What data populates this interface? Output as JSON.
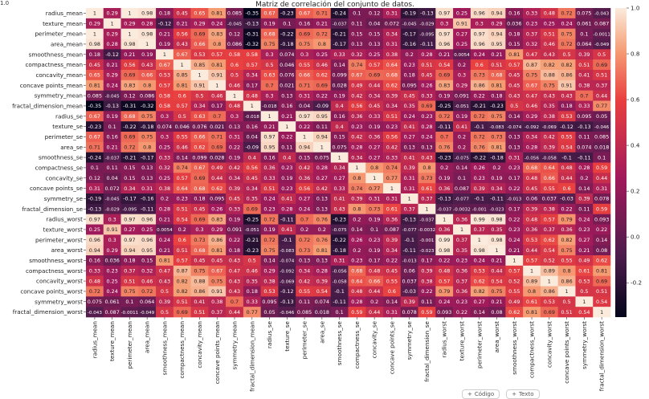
{
  "chart_data": {
    "type": "heatmap",
    "title": "Matriz de correlación del conjunto de datos.",
    "labels": [
      "radius_mean",
      "texture_mean",
      "perimeter_mean",
      "area_mean",
      "smoothness_mean",
      "compactness_mean",
      "concavity_mean",
      "concave points_mean",
      "symmetry_mean",
      "fractal_dimension_mean",
      "radius_se",
      "texture_se",
      "perimeter_se",
      "area_se",
      "smoothness_se",
      "compactness_se",
      "concavity_se",
      "concave points_se",
      "symmetry_se",
      "fractal_dimension_se",
      "radius_worst",
      "texture_worst",
      "perimeter_worst",
      "area_worst",
      "smoothness_worst",
      "compactness_worst",
      "concavity_worst",
      "concave points_worst",
      "symmetry_worst",
      "fractal_dimension_worst"
    ],
    "matrix": [
      [
        "1",
        "0.29",
        "1",
        "0.98",
        "0.18",
        "0.45",
        "0.65",
        "0.81",
        "0.085",
        "-0.35",
        "0.67",
        "-0.23",
        "0.67",
        "0.71",
        "-0.24",
        "0.1",
        "0.12",
        "0.31",
        "-0.19",
        "-0.13",
        "0.97",
        "0.25",
        "0.96",
        "0.94",
        "0.16",
        "0.33",
        "0.48",
        "0.72",
        "0.075",
        "-0.043"
      ],
      [
        "0.29",
        "1",
        "0.29",
        "0.28",
        "-0.12",
        "0.21",
        "0.29",
        "0.24",
        "-0.045",
        "-0.13",
        "0.19",
        "0.1",
        "0.16",
        "0.21",
        "-0.037",
        "0.11",
        "0.04",
        "0.072",
        "-0.045",
        "-0.029",
        "0.3",
        "0.91",
        "0.3",
        "0.29",
        "0.036",
        "0.23",
        "0.25",
        "0.24",
        "0.061",
        "0.087"
      ],
      [
        "1",
        "0.29",
        "1",
        "0.98",
        "0.21",
        "0.56",
        "0.69",
        "0.83",
        "0.12",
        "-0.31",
        "0.68",
        "-0.22",
        "0.69",
        "0.72",
        "-0.21",
        "0.15",
        "0.15",
        "0.34",
        "-0.17",
        "-0.095",
        "0.97",
        "0.27",
        "0.97",
        "0.94",
        "0.18",
        "0.37",
        "0.51",
        "0.75",
        "0.1",
        "-0.0011"
      ],
      [
        "0.98",
        "0.28",
        "0.98",
        "1",
        "0.19",
        "0.43",
        "0.66",
        "0.8",
        "0.086",
        "-0.32",
        "0.75",
        "-0.18",
        "0.75",
        "0.8",
        "-0.17",
        "0.13",
        "0.13",
        "0.31",
        "-0.16",
        "-0.11",
        "0.96",
        "0.25",
        "0.96",
        "0.95",
        "0.15",
        "0.32",
        "0.46",
        "0.72",
        "0.064",
        "-0.049"
      ],
      [
        "0.18",
        "-0.12",
        "0.21",
        "0.19",
        "1",
        "0.67",
        "0.53",
        "0.57",
        "0.58",
        "0.58",
        "0.3",
        "0.074",
        "0.3",
        "0.25",
        "0.33",
        "0.32",
        "0.25",
        "0.38",
        "0.2",
        "0.28",
        "0.21",
        "0.0054",
        "0.24",
        "0.21",
        "0.81",
        "0.47",
        "0.43",
        "0.5",
        "0.39",
        "0.5"
      ],
      [
        "0.45",
        "0.21",
        "0.56",
        "0.43",
        "0.67",
        "1",
        "0.85",
        "0.81",
        "0.6",
        "0.57",
        "0.5",
        "0.046",
        "0.55",
        "0.46",
        "0.14",
        "0.74",
        "0.57",
        "0.64",
        "0.23",
        "0.51",
        "0.54",
        "0.2",
        "0.6",
        "0.51",
        "0.57",
        "0.87",
        "0.82",
        "0.82",
        "0.51",
        "0.69"
      ],
      [
        "0.65",
        "0.29",
        "0.69",
        "0.66",
        "0.53",
        "0.85",
        "1",
        "0.91",
        "0.5",
        "0.34",
        "0.63",
        "0.076",
        "0.66",
        "0.62",
        "0.099",
        "0.67",
        "0.69",
        "0.68",
        "0.18",
        "0.45",
        "0.69",
        "0.3",
        "0.73",
        "0.68",
        "0.45",
        "0.75",
        "0.88",
        "0.86",
        "0.41",
        "0.51"
      ],
      [
        "0.81",
        "0.24",
        "0.83",
        "0.8",
        "0.57",
        "0.81",
        "0.91",
        "1",
        "0.46",
        "0.17",
        "0.7",
        "0.021",
        "0.71",
        "0.69",
        "0.028",
        "0.49",
        "0.44",
        "0.62",
        "0.095",
        "0.26",
        "0.83",
        "0.29",
        "0.86",
        "0.81",
        "0.45",
        "0.67",
        "0.75",
        "0.91",
        "0.38",
        "0.37"
      ],
      [
        "0.085",
        "-0.045",
        "0.12",
        "0.086",
        "0.58",
        "0.6",
        "0.5",
        "0.46",
        "1",
        "0.48",
        "0.3",
        "0.13",
        "0.31",
        "0.22",
        "0.19",
        "0.42",
        "0.34",
        "0.39",
        "0.45",
        "0.33",
        "0.19",
        "0.091",
        "0.22",
        "0.18",
        "0.43",
        "0.47",
        "0.43",
        "0.43",
        "0.7",
        "0.44"
      ],
      [
        "-0.35",
        "-0.13",
        "-0.31",
        "-0.32",
        "0.58",
        "0.57",
        "0.34",
        "0.17",
        "0.48",
        "1",
        "-0.018",
        "0.16",
        "0.04",
        "-0.09",
        "0.4",
        "0.56",
        "0.45",
        "0.34",
        "0.35",
        "0.69",
        "-0.25",
        "-0.051",
        "-0.21",
        "-0.23",
        "0.5",
        "0.46",
        "0.35",
        "0.18",
        "0.33",
        "0.77"
      ],
      [
        "0.67",
        "0.19",
        "0.68",
        "0.75",
        "0.3",
        "0.5",
        "0.63",
        "0.7",
        "0.3",
        "-0.018",
        "1",
        "0.21",
        "0.97",
        "0.95",
        "0.16",
        "0.36",
        "0.33",
        "0.51",
        "0.24",
        "0.23",
        "0.72",
        "0.19",
        "0.72",
        "0.75",
        "0.14",
        "0.29",
        "0.38",
        "0.53",
        "0.095",
        "0.05"
      ],
      [
        "-0.23",
        "0.1",
        "-0.22",
        "-0.18",
        "0.074",
        "0.046",
        "0.076",
        "0.021",
        "0.13",
        "0.16",
        "0.21",
        "1",
        "0.22",
        "0.11",
        "0.4",
        "0.23",
        "0.19",
        "0.23",
        "0.41",
        "0.28",
        "-0.11",
        "0.41",
        "-0.1",
        "-0.083",
        "-0.074",
        "-0.092",
        "-0.069",
        "-0.12",
        "-0.13",
        "-0.046"
      ],
      [
        "0.67",
        "0.16",
        "0.69",
        "0.75",
        "0.3",
        "0.55",
        "0.66",
        "0.71",
        "0.31",
        "0.04",
        "0.97",
        "0.22",
        "1",
        "0.94",
        "0.15",
        "0.42",
        "0.36",
        "0.56",
        "0.27",
        "0.24",
        "0.7",
        "0.2",
        "0.72",
        "0.73",
        "0.13",
        "0.34",
        "0.42",
        "0.55",
        "0.11",
        "0.085"
      ],
      [
        "0.71",
        "0.21",
        "0.72",
        "0.8",
        "0.25",
        "0.46",
        "0.62",
        "0.69",
        "0.22",
        "-0.09",
        "0.95",
        "0.11",
        "0.94",
        "1",
        "0.075",
        "0.28",
        "0.27",
        "0.42",
        "0.13",
        "0.13",
        "0.76",
        "0.2",
        "0.76",
        "0.81",
        "0.13",
        "0.28",
        "0.39",
        "0.54",
        "0.074",
        "0.018"
      ],
      [
        "-0.24",
        "-0.037",
        "-0.21",
        "-0.17",
        "0.33",
        "0.14",
        "0.099",
        "0.028",
        "0.19",
        "0.4",
        "0.16",
        "0.4",
        "0.15",
        "0.075",
        "1",
        "0.34",
        "0.27",
        "0.33",
        "0.41",
        "0.43",
        "-0.23",
        "-0.075",
        "-0.22",
        "-0.18",
        "0.31",
        "-0.056",
        "-0.058",
        "-0.1",
        "-0.11",
        "0.1"
      ],
      [
        "0.1",
        "0.11",
        "0.15",
        "0.13",
        "0.32",
        "0.74",
        "0.67",
        "0.49",
        "0.42",
        "0.56",
        "0.36",
        "0.23",
        "0.42",
        "0.28",
        "0.34",
        "1",
        "0.8",
        "0.74",
        "0.39",
        "0.8",
        "0.2",
        "0.14",
        "0.26",
        "0.2",
        "0.23",
        "0.68",
        "0.64",
        "0.48",
        "0.28",
        "0.59"
      ],
      [
        "0.12",
        "0.04",
        "0.15",
        "0.13",
        "0.25",
        "0.57",
        "0.69",
        "0.44",
        "0.34",
        "0.45",
        "0.33",
        "0.19",
        "0.36",
        "0.27",
        "0.27",
        "0.8",
        "1",
        "0.77",
        "0.31",
        "0.73",
        "0.19",
        "0.1",
        "0.23",
        "0.19",
        "0.17",
        "0.48",
        "0.66",
        "0.44",
        "0.2",
        "0.44"
      ],
      [
        "0.31",
        "0.072",
        "0.34",
        "0.31",
        "0.38",
        "0.64",
        "0.68",
        "0.62",
        "0.39",
        "0.34",
        "0.51",
        "0.23",
        "0.56",
        "0.42",
        "0.33",
        "0.74",
        "0.77",
        "1",
        "0.31",
        "0.61",
        "0.36",
        "0.087",
        "0.39",
        "0.34",
        "0.22",
        "0.45",
        "0.55",
        "0.6",
        "0.14",
        "0.31"
      ],
      [
        "-0.19",
        "-0.045",
        "-0.17",
        "-0.16",
        "0.2",
        "0.23",
        "0.18",
        "0.095",
        "0.45",
        "0.35",
        "0.24",
        "0.41",
        "0.27",
        "0.13",
        "0.41",
        "0.39",
        "0.31",
        "0.31",
        "1",
        "0.37",
        "-0.13",
        "-0.077",
        "-0.1",
        "-0.11",
        "-0.013",
        "0.06",
        "0.037",
        "-0.03",
        "0.39",
        "0.078"
      ],
      [
        "-0.13",
        "-0.029",
        "-0.095",
        "-0.11",
        "0.28",
        "0.51",
        "0.45",
        "0.26",
        "0.33",
        "0.69",
        "0.23",
        "0.28",
        "0.24",
        "0.13",
        "0.43",
        "0.8",
        "0.73",
        "0.61",
        "0.37",
        "1",
        "-0.037",
        "-0.0032",
        "-0.001",
        "-0.023",
        "0.17",
        "0.39",
        "0.38",
        "0.22",
        "0.11",
        "0.59"
      ],
      [
        "0.97",
        "0.3",
        "0.97",
        "0.96",
        "0.21",
        "0.54",
        "0.69",
        "0.83",
        "0.19",
        "-0.25",
        "0.72",
        "-0.11",
        "0.7",
        "0.76",
        "-0.23",
        "0.2",
        "0.19",
        "0.36",
        "-0.13",
        "-0.037",
        "1",
        "0.36",
        "0.99",
        "0.98",
        "0.22",
        "0.48",
        "0.57",
        "0.79",
        "0.24",
        "0.093"
      ],
      [
        "0.25",
        "0.91",
        "0.27",
        "0.25",
        "0.0054",
        "0.2",
        "0.3",
        "0.29",
        "0.091",
        "-0.051",
        "0.19",
        "0.41",
        "0.2",
        "0.2",
        "-0.075",
        "0.14",
        "0.1",
        "0.087",
        "-0.077",
        "-0.0032",
        "0.36",
        "1",
        "0.37",
        "0.35",
        "0.23",
        "0.36",
        "0.37",
        "0.36",
        "0.23",
        "0.22"
      ],
      [
        "0.96",
        "0.3",
        "0.97",
        "0.96",
        "0.24",
        "0.6",
        "0.73",
        "0.86",
        "0.22",
        "-0.21",
        "0.72",
        "-0.1",
        "0.72",
        "0.76",
        "-0.22",
        "0.26",
        "0.23",
        "0.39",
        "-0.1",
        "-0.001",
        "0.99",
        "0.37",
        "1",
        "0.98",
        "0.24",
        "0.53",
        "0.62",
        "0.82",
        "0.27",
        "0.14"
      ],
      [
        "0.94",
        "0.29",
        "0.94",
        "0.95",
        "0.21",
        "0.51",
        "0.68",
        "0.81",
        "0.18",
        "-0.23",
        "0.75",
        "-0.083",
        "0.73",
        "0.81",
        "-0.18",
        "0.2",
        "0.19",
        "0.34",
        "-0.11",
        "-0.023",
        "0.98",
        "0.35",
        "0.98",
        "1",
        "0.21",
        "0.44",
        "0.54",
        "0.75",
        "0.21",
        "0.08"
      ],
      [
        "0.16",
        "0.036",
        "0.18",
        "0.15",
        "0.81",
        "0.57",
        "0.45",
        "0.45",
        "0.43",
        "0.5",
        "0.14",
        "-0.074",
        "0.13",
        "0.13",
        "0.31",
        "0.23",
        "0.17",
        "0.22",
        "-0.013",
        "0.17",
        "0.22",
        "0.23",
        "0.24",
        "0.21",
        "1",
        "0.57",
        "0.52",
        "0.55",
        "0.49",
        "0.62"
      ],
      [
        "0.33",
        "0.23",
        "0.37",
        "0.32",
        "0.47",
        "0.87",
        "0.75",
        "0.67",
        "0.47",
        "0.46",
        "0.29",
        "-0.092",
        "0.34",
        "0.28",
        "-0.056",
        "0.68",
        "0.48",
        "0.45",
        "0.06",
        "0.39",
        "0.48",
        "0.36",
        "0.53",
        "0.44",
        "0.57",
        "1",
        "0.89",
        "0.8",
        "0.61",
        "0.81"
      ],
      [
        "0.48",
        "0.25",
        "0.51",
        "0.46",
        "0.43",
        "0.82",
        "0.88",
        "0.75",
        "0.43",
        "0.35",
        "0.38",
        "-0.069",
        "0.42",
        "0.39",
        "-0.058",
        "0.64",
        "0.66",
        "0.55",
        "0.037",
        "0.38",
        "0.57",
        "0.37",
        "0.62",
        "0.54",
        "0.52",
        "0.89",
        "1",
        "0.86",
        "0.53",
        "0.69"
      ],
      [
        "0.72",
        "0.24",
        "0.75",
        "0.72",
        "0.5",
        "0.82",
        "0.86",
        "0.91",
        "0.43",
        "0.18",
        "0.53",
        "-0.12",
        "0.55",
        "0.54",
        "-0.1",
        "0.48",
        "0.44",
        "0.6",
        "-0.03",
        "0.22",
        "0.79",
        "0.36",
        "0.82",
        "0.75",
        "0.55",
        "0.8",
        "0.86",
        "1",
        "0.5",
        "0.51"
      ],
      [
        "0.075",
        "0.061",
        "0.1",
        "0.064",
        "0.39",
        "0.51",
        "0.41",
        "0.38",
        "0.7",
        "0.33",
        "0.095",
        "-0.13",
        "0.11",
        "0.074",
        "-0.11",
        "0.28",
        "0.2",
        "0.14",
        "0.39",
        "0.11",
        "0.24",
        "0.23",
        "0.27",
        "0.21",
        "0.49",
        "0.61",
        "0.53",
        "0.5",
        "1",
        "0.54"
      ],
      [
        "-0.043",
        "0.087",
        "-0.0011",
        "-0.049",
        "0.5",
        "0.69",
        "0.51",
        "0.37",
        "0.44",
        "0.77",
        "0.05",
        "-0.046",
        "0.085",
        "0.018",
        "0.1",
        "0.59",
        "0.44",
        "0.31",
        "0.078",
        "0.59",
        "0.093",
        "0.22",
        "0.14",
        "0.08",
        "0.62",
        "0.81",
        "0.69",
        "0.51",
        "0.54",
        "1"
      ]
    ],
    "color_range": [
      -0.35,
      1.0
    ],
    "colorbar_ticks": [
      "1.0",
      "0.8",
      "0.6",
      "0.4",
      "0.2",
      "0.0",
      "-0.2"
    ],
    "colors": {
      "low": "#03051a",
      "mid_low": "#4c1d4b",
      "mid": "#a11a5b",
      "mid_high": "#e83f3f",
      "high_mid": "#f69c73",
      "high": "#faebdd"
    }
  },
  "ui": {
    "top_left_tick": "1.0",
    "button_code_label": "Código",
    "button_text_label": "Texto",
    "button_code_icon": "plus-icon",
    "button_text_icon": "plus-icon"
  }
}
